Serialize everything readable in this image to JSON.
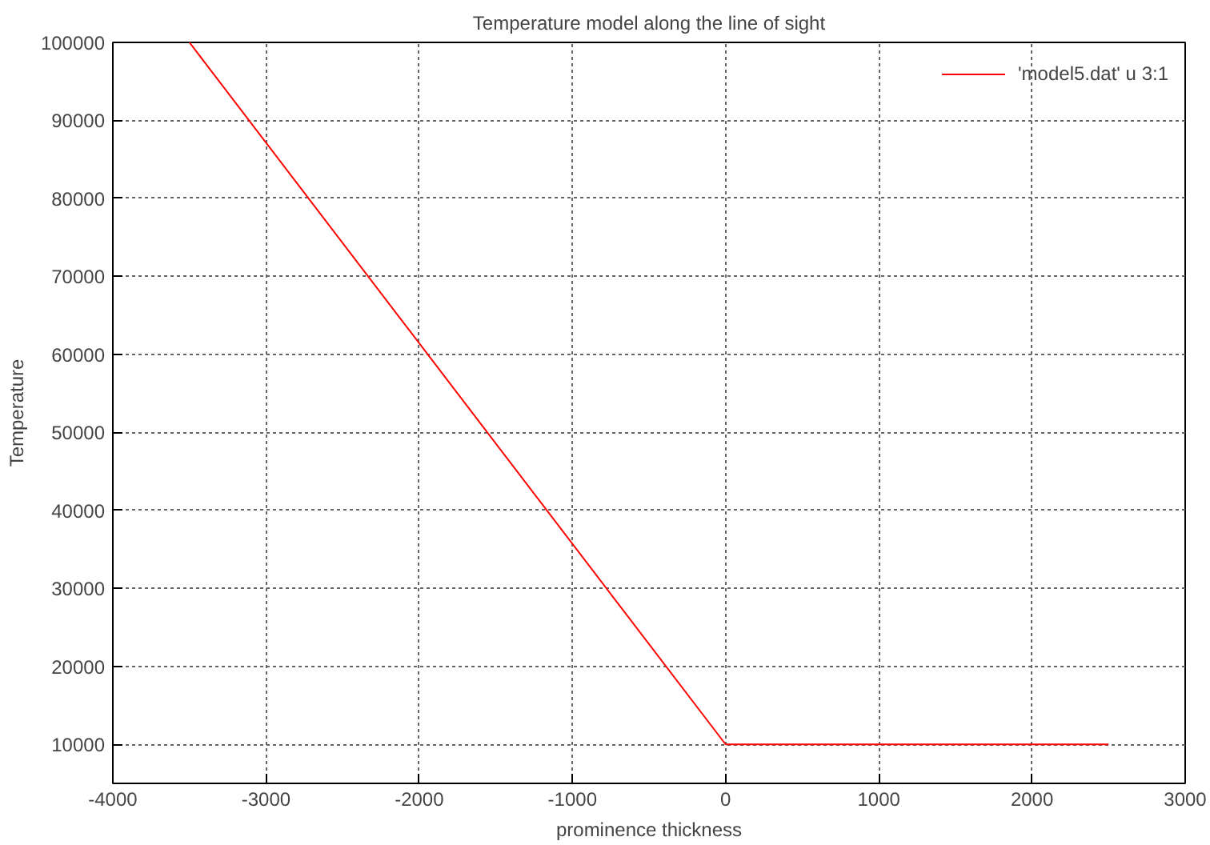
{
  "chart_data": {
    "type": "line",
    "title": "Temperature model along the line of sight",
    "xlabel": "prominence thickness",
    "ylabel": "Temperature",
    "series": [
      {
        "name": "'model5.dat' u 3:1",
        "color": "#ff0000",
        "x": [
          -3500,
          0,
          2500
        ],
        "values": [
          100000,
          10000,
          10000
        ]
      }
    ],
    "xlim": [
      -4000,
      3000
    ],
    "ylim": [
      5000,
      100000
    ],
    "xticks": [
      -4000,
      -3000,
      -2000,
      -1000,
      0,
      1000,
      2000,
      3000
    ],
    "yticks": [
      10000,
      20000,
      30000,
      40000,
      50000,
      60000,
      70000,
      80000,
      90000,
      100000
    ],
    "grid": true,
    "legend": "top right",
    "marker": "none",
    "line_style": "solid"
  }
}
